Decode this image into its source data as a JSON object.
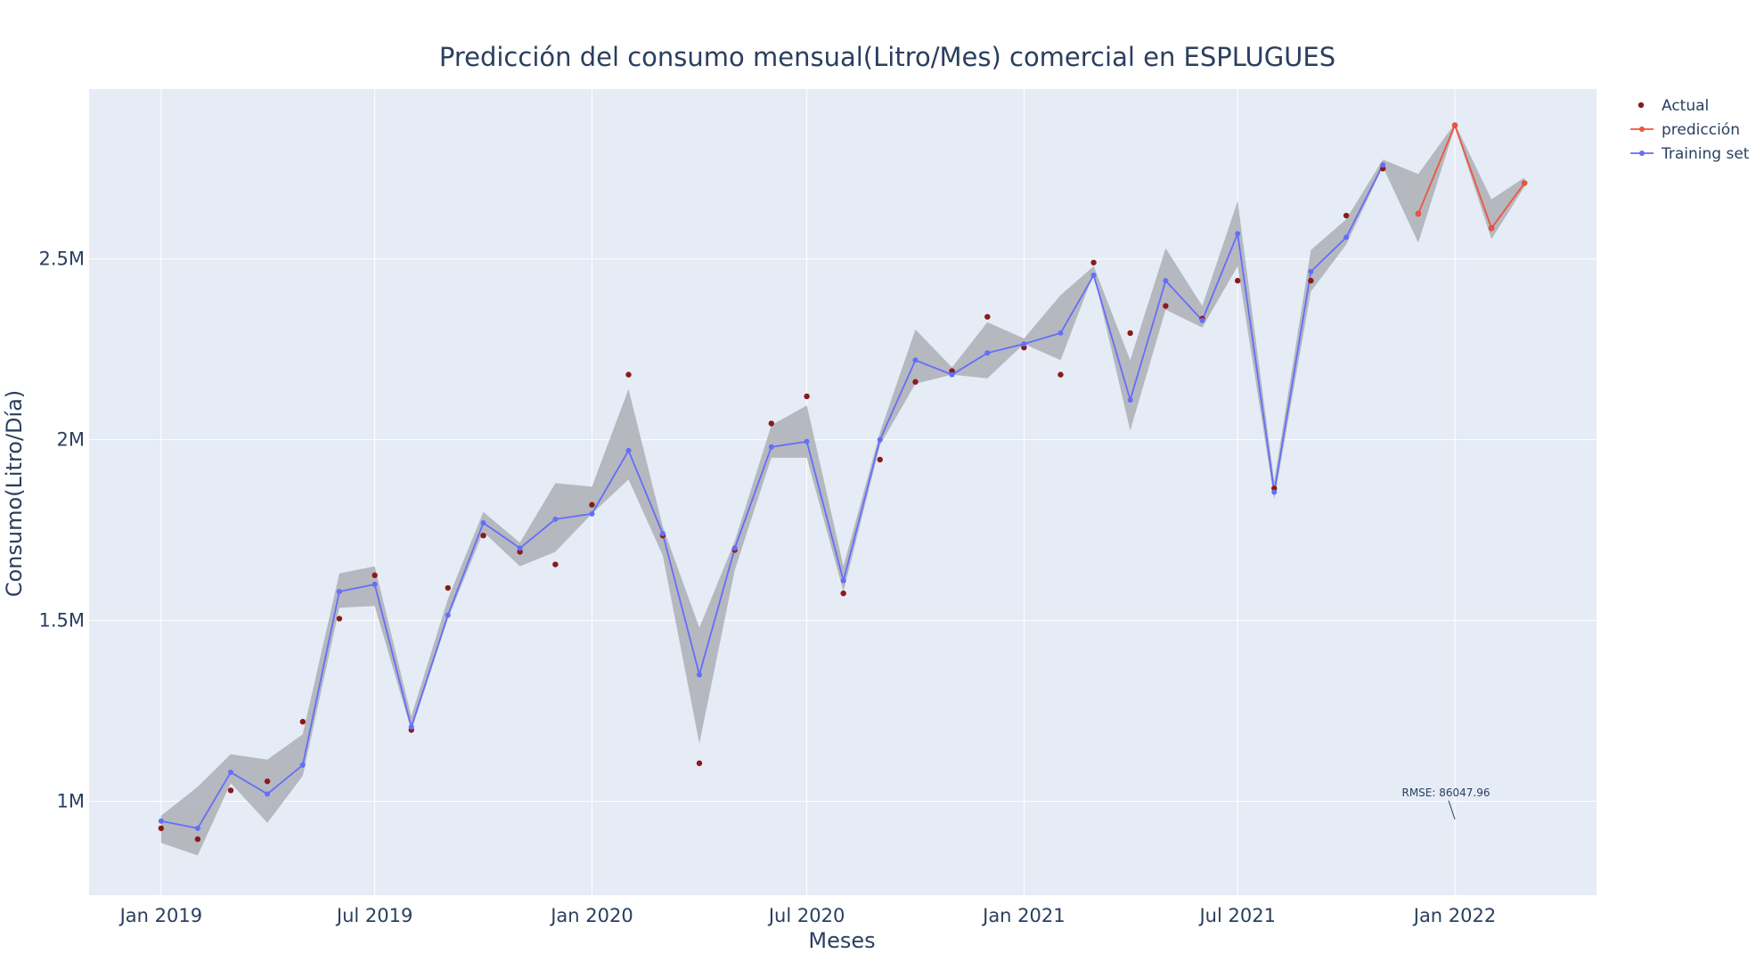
{
  "chart_data": {
    "type": "line",
    "title": "Predicción del consumo mensual(Litro/Mes) comercial en ESPLUGUES",
    "xlabel": "Meses",
    "ylabel": "Consumo(Litro/Día)",
    "x_range": [
      "2018-11-01",
      "2022-05-01"
    ],
    "ylim": [
      740000,
      2970000
    ],
    "x_ticks": [
      {
        "date": "2019-01-01",
        "label": "Jan 2019"
      },
      {
        "date": "2019-07-01",
        "label": "Jul 2019"
      },
      {
        "date": "2020-01-01",
        "label": "Jan 2020"
      },
      {
        "date": "2020-07-01",
        "label": "Jul 2020"
      },
      {
        "date": "2021-01-01",
        "label": "Jan 2021"
      },
      {
        "date": "2021-07-01",
        "label": "Jul 2021"
      },
      {
        "date": "2022-01-01",
        "label": "Jan 2022"
      }
    ],
    "y_ticks": [
      {
        "value": 1000000,
        "label": "1M"
      },
      {
        "value": 1500000,
        "label": "1.5M"
      },
      {
        "value": 2000000,
        "label": "2M"
      },
      {
        "value": 2500000,
        "label": "2.5M"
      }
    ],
    "grid": true,
    "legend_position": "top-right",
    "colors": {
      "actual": "#8b1a1a",
      "prediction": "#ef553b",
      "training": "#636efa",
      "band": "#a9acb2",
      "plot_bg": "#e5ecf6",
      "grid": "#ffffff",
      "text": "#2a3f5f"
    },
    "series": [
      {
        "name": "Actual",
        "mode": "markers",
        "x": [
          "2019-01-01",
          "2019-02-01",
          "2019-03-01",
          "2019-04-01",
          "2019-05-01",
          "2019-06-01",
          "2019-07-01",
          "2019-08-01",
          "2019-09-01",
          "2019-10-01",
          "2019-11-01",
          "2019-12-01",
          "2020-01-01",
          "2020-02-01",
          "2020-03-01",
          "2020-04-01",
          "2020-05-01",
          "2020-06-01",
          "2020-07-01",
          "2020-08-01",
          "2020-09-01",
          "2020-10-01",
          "2020-11-01",
          "2020-12-01",
          "2021-01-01",
          "2021-02-01",
          "2021-03-01",
          "2021-04-01",
          "2021-05-01",
          "2021-06-01",
          "2021-07-01",
          "2021-08-01",
          "2021-09-01",
          "2021-10-01",
          "2021-11-01",
          "2021-12-01",
          "2022-01-01",
          "2022-02-01",
          "2022-03-01"
        ],
        "y": [
          925000,
          895000,
          1030000,
          1055000,
          1220000,
          1505000,
          1625000,
          1197000,
          1590000,
          1735000,
          1690000,
          1655000,
          1820000,
          2180000,
          1735000,
          1105000,
          1695000,
          2045000,
          2120000,
          1575000,
          1945000,
          2160000,
          2190000,
          2340000,
          2255000,
          2180000,
          2490000,
          2295000,
          2370000,
          2335000,
          2440000,
          1865000,
          2440000,
          2620000,
          2750000,
          2625000,
          2870000,
          2585000,
          2710000
        ]
      },
      {
        "name": "predicción",
        "mode": "lines+markers",
        "x": [
          "2021-12-01",
          "2022-01-01",
          "2022-02-01",
          "2022-03-01"
        ],
        "y": [
          2625000,
          2870000,
          2585000,
          2710000
        ]
      },
      {
        "name": "Training set",
        "mode": "lines+markers",
        "x": [
          "2019-01-01",
          "2019-02-01",
          "2019-03-01",
          "2019-04-01",
          "2019-05-01",
          "2019-06-01",
          "2019-07-01",
          "2019-08-01",
          "2019-09-01",
          "2019-10-01",
          "2019-11-01",
          "2019-12-01",
          "2020-01-01",
          "2020-02-01",
          "2020-03-01",
          "2020-04-01",
          "2020-05-01",
          "2020-06-01",
          "2020-07-01",
          "2020-08-01",
          "2020-09-01",
          "2020-10-01",
          "2020-11-01",
          "2020-12-01",
          "2021-01-01",
          "2021-02-01",
          "2021-03-01",
          "2021-04-01",
          "2021-05-01",
          "2021-06-01",
          "2021-07-01",
          "2021-08-01",
          "2021-09-01",
          "2021-10-01",
          "2021-11-01"
        ],
        "y": [
          945000,
          925000,
          1080000,
          1020000,
          1100000,
          1580000,
          1600000,
          1205000,
          1515000,
          1770000,
          1700000,
          1780000,
          1795000,
          1970000,
          1740000,
          1350000,
          1700000,
          1980000,
          1995000,
          1610000,
          2000000,
          2220000,
          2180000,
          2240000,
          2265000,
          2295000,
          2455000,
          2110000,
          2440000,
          2330000,
          2570000,
          1855000,
          2465000,
          2560000,
          2760000
        ]
      }
    ],
    "confidence_band": {
      "x": [
        "2019-01-01",
        "2019-02-01",
        "2019-03-01",
        "2019-04-01",
        "2019-05-01",
        "2019-06-01",
        "2019-07-01",
        "2019-08-01",
        "2019-09-01",
        "2019-10-01",
        "2019-11-01",
        "2019-12-01",
        "2020-01-01",
        "2020-02-01",
        "2020-03-01",
        "2020-04-01",
        "2020-05-01",
        "2020-06-01",
        "2020-07-01",
        "2020-08-01",
        "2020-09-01",
        "2020-10-01",
        "2020-11-01",
        "2020-12-01",
        "2021-01-01",
        "2021-02-01",
        "2021-03-01",
        "2021-04-01",
        "2021-05-01",
        "2021-06-01",
        "2021-07-01",
        "2021-08-01",
        "2021-09-01",
        "2021-10-01",
        "2021-11-01",
        "2021-12-01",
        "2022-01-01",
        "2022-02-01",
        "2022-03-01"
      ],
      "upper": [
        960000,
        1040000,
        1130000,
        1115000,
        1185000,
        1630000,
        1650000,
        1235000,
        1560000,
        1800000,
        1715000,
        1880000,
        1870000,
        2140000,
        1760000,
        1480000,
        1720000,
        2040000,
        2095000,
        1650000,
        2020000,
        2305000,
        2200000,
        2325000,
        2280000,
        2400000,
        2480000,
        2220000,
        2530000,
        2370000,
        2660000,
        1885000,
        2525000,
        2610000,
        2775000,
        2735000,
        2875000,
        2665000,
        2725000
      ],
      "lower": [
        885000,
        850000,
        1050000,
        940000,
        1070000,
        1535000,
        1540000,
        1195000,
        1505000,
        1745000,
        1650000,
        1690000,
        1795000,
        1890000,
        1680000,
        1160000,
        1640000,
        1950000,
        1950000,
        1580000,
        1985000,
        2155000,
        2180000,
        2170000,
        2265000,
        2220000,
        2460000,
        2025000,
        2360000,
        2310000,
        2480000,
        1835000,
        2410000,
        2540000,
        2755000,
        2545000,
        2865000,
        2555000,
        2700000
      ]
    },
    "annotations": [
      {
        "text": "RMSE: 86047.96",
        "x": "2022-01-01",
        "y": 950000
      }
    ]
  }
}
